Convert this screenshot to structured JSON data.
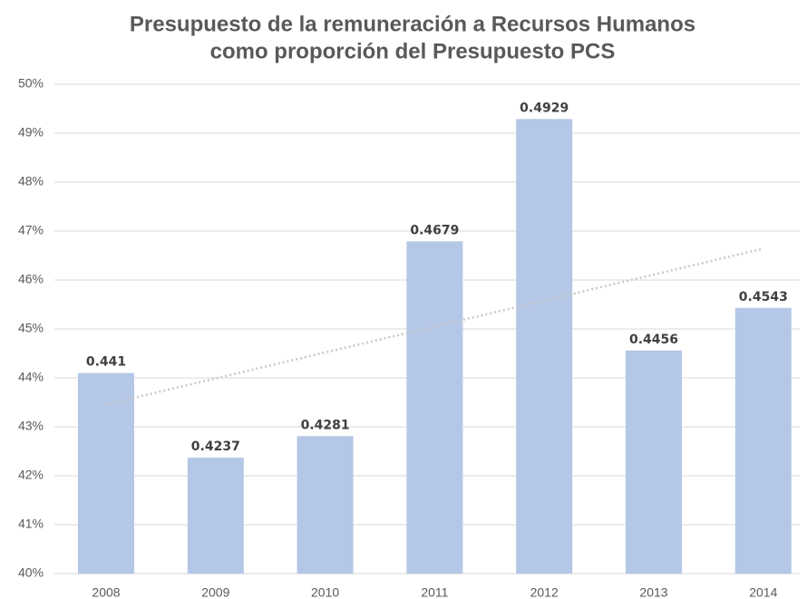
{
  "chart_data": {
    "type": "bar",
    "title": [
      "Presupuesto de la remuneración a Recursos Humanos",
      "como proporción del Presupuesto PCS"
    ],
    "categories": [
      "2008",
      "2009",
      "2010",
      "2011",
      "2012",
      "2013",
      "2014"
    ],
    "values": [
      44.1,
      42.37,
      42.81,
      46.79,
      49.29,
      44.56,
      45.43
    ],
    "value_labels": [
      "0.441",
      "0.4237",
      "0.4281",
      "0.4679",
      "0.4929",
      "0.4456",
      "0.4543"
    ],
    "color": "#b4c7e7",
    "ylim": [
      40,
      50
    ],
    "yticks": [
      {
        "value": 40,
        "label": "40%"
      },
      {
        "value": 41,
        "label": "41%"
      },
      {
        "value": 42,
        "label": "42%"
      },
      {
        "value": 43,
        "label": "43%"
      },
      {
        "value": 44,
        "label": "44%"
      },
      {
        "value": 45,
        "label": "45%"
      },
      {
        "value": 46,
        "label": "46%"
      },
      {
        "value": 47,
        "label": "47%"
      },
      {
        "value": 48,
        "label": "48%"
      },
      {
        "value": 49,
        "label": "49%"
      },
      {
        "value": 50,
        "label": "50%"
      }
    ],
    "grid": true,
    "trendline": {
      "type": "linear",
      "color": "#c8c8c8"
    }
  }
}
